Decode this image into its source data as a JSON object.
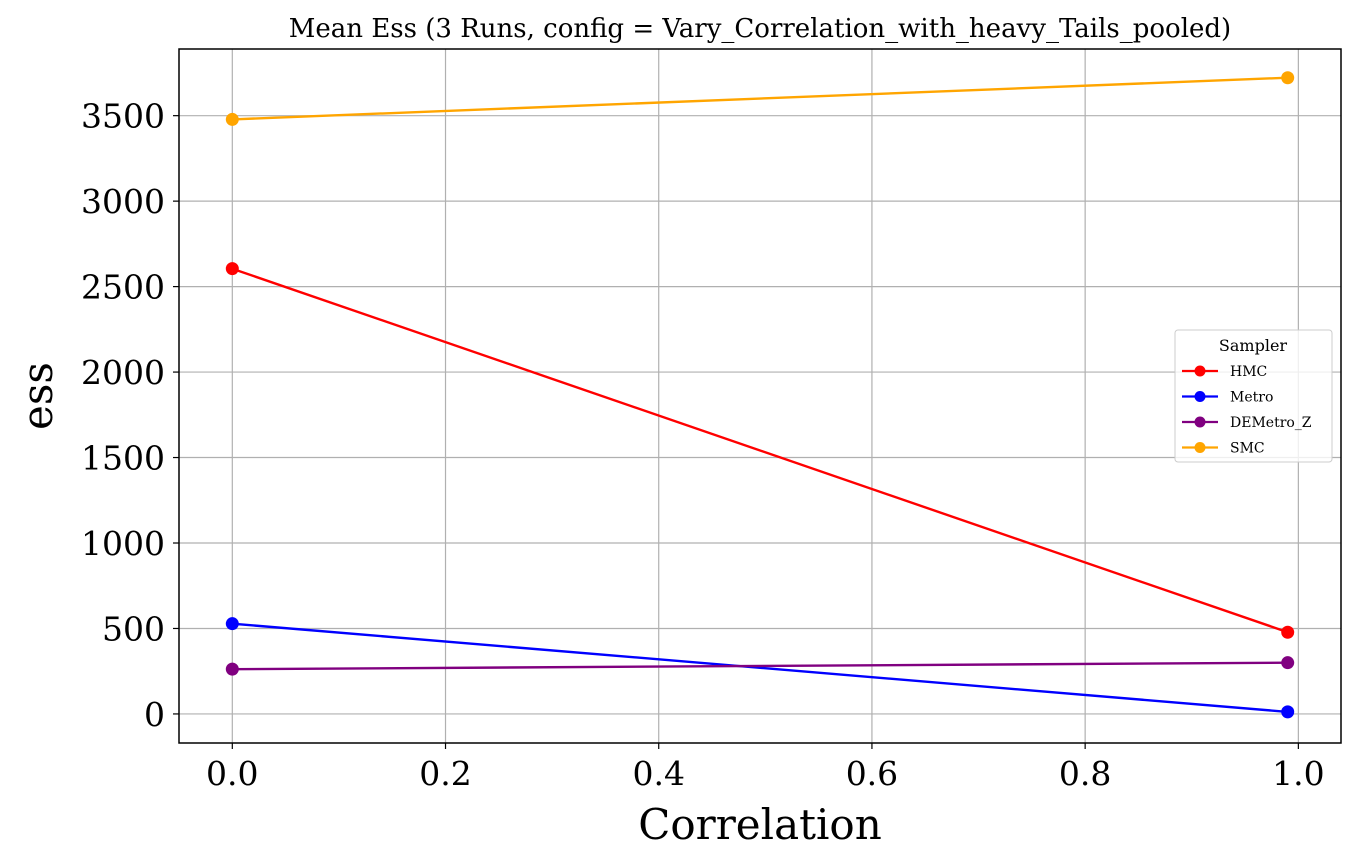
{
  "chart_data": {
    "type": "line",
    "title": "Mean Ess (3 Runs, config = Vary_Correlation_with_heavy_Tails_pooled)",
    "xlabel": "Correlation",
    "ylabel": "ess",
    "x": [
      0.0,
      0.99
    ],
    "xlim": [
      -0.05,
      1.04
    ],
    "ylim": [
      -170,
      3890
    ],
    "xticks": [
      0.0,
      0.2,
      0.4,
      0.6,
      0.8,
      1.0
    ],
    "xtick_labels": [
      "0.0",
      "0.2",
      "0.4",
      "0.6",
      "0.8",
      "1.0"
    ],
    "yticks": [
      0,
      500,
      1000,
      1500,
      2000,
      2500,
      3000,
      3500
    ],
    "ytick_labels": [
      "0",
      "500",
      "1000",
      "1500",
      "2000",
      "2500",
      "3000",
      "3500"
    ],
    "grid": true,
    "legend": {
      "title": "Sampler",
      "placement": "center-right"
    },
    "series": [
      {
        "name": "HMC",
        "color": "#ff0000",
        "values": [
          2605,
          478
        ]
      },
      {
        "name": "Metro",
        "color": "#0000ff",
        "values": [
          528,
          12
        ]
      },
      {
        "name": "DEMetro_Z",
        "color": "#800080",
        "values": [
          262,
          300
        ]
      },
      {
        "name": "SMC",
        "color": "#ffa500",
        "values": [
          3478,
          3722
        ]
      }
    ]
  }
}
